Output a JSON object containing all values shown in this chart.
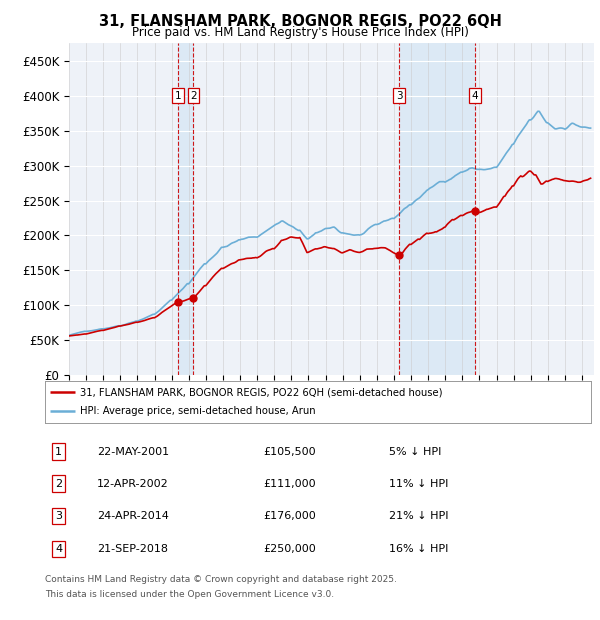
{
  "title": "31, FLANSHAM PARK, BOGNOR REGIS, PO22 6QH",
  "subtitle": "Price paid vs. HM Land Registry's House Price Index (HPI)",
  "ylim": [
    0,
    475000
  ],
  "yticks": [
    0,
    50000,
    100000,
    150000,
    200000,
    250000,
    300000,
    350000,
    400000,
    450000
  ],
  "ytick_labels": [
    "£0",
    "£50K",
    "£100K",
    "£150K",
    "£200K",
    "£250K",
    "£300K",
    "£350K",
    "£400K",
    "£450K"
  ],
  "xlim_start": 1995.0,
  "xlim_end": 2025.7,
  "legend_line1": "31, FLANSHAM PARK, BOGNOR REGIS, PO22 6QH (semi-detached house)",
  "legend_line2": "HPI: Average price, semi-detached house, Arun",
  "sales": [
    {
      "num": 1,
      "date": "22-MAY-2001",
      "price": 105500,
      "year": 2001.38,
      "pct": "5%",
      "dir": "↓"
    },
    {
      "num": 2,
      "date": "12-APR-2002",
      "price": 111000,
      "year": 2002.28,
      "pct": "11%",
      "dir": "↓"
    },
    {
      "num": 3,
      "date": "24-APR-2014",
      "price": 176000,
      "year": 2014.31,
      "pct": "21%",
      "dir": "↓"
    },
    {
      "num": 4,
      "date": "21-SEP-2018",
      "price": 250000,
      "year": 2018.72,
      "pct": "16%",
      "dir": "↓"
    }
  ],
  "footer1": "Contains HM Land Registry data © Crown copyright and database right 2025.",
  "footer2": "This data is licensed under the Open Government Licence v3.0.",
  "hpi_color": "#6baed6",
  "price_color": "#cc0000",
  "vline_color": "#cc0000",
  "box_color": "#cc0000",
  "background_color": "#eef2f8",
  "shade_color": "#dce9f5"
}
